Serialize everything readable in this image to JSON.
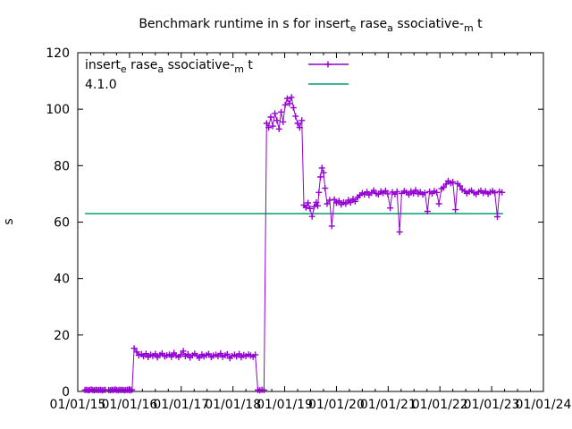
{
  "title": {
    "display": "Benchmark runtime in s for insertₑ raseₐ ssociative-ₘ t",
    "parts": [
      {
        "t": "Benchmark runtime in s for insert"
      },
      {
        "s": "e"
      },
      {
        "t": " rase"
      },
      {
        "s": "a"
      },
      {
        "t": " ssociative-"
      },
      {
        "s": "m"
      },
      {
        "t": " t"
      }
    ]
  },
  "legend": {
    "position": "top-left-inside",
    "entries": [
      {
        "display": "insertₑ raseₐ ssociative-ₘ t",
        "parts": [
          {
            "t": "insert"
          },
          {
            "s": "e"
          },
          {
            "t": " rase"
          },
          {
            "s": "a"
          },
          {
            "t": " ssociative-"
          },
          {
            "s": "m"
          },
          {
            "t": " t"
          }
        ],
        "color": "#9400D3",
        "style": "linespoints-plus"
      },
      {
        "display": "4.1.0",
        "parts": [
          {
            "t": "4.1.0"
          }
        ],
        "color": "#009E73",
        "style": "line"
      }
    ]
  },
  "colors": {
    "benchmark_series": "#9400D3",
    "reference_line": "#009E73",
    "axis": "#000000",
    "background": "#ffffff"
  },
  "chart_data": {
    "type": "scatter",
    "subtype": "linespoints-time-series",
    "title": "Benchmark runtime in s for insertₑ raseₐ ssociative-ₘ t",
    "xlabel": "",
    "ylabel": "s",
    "grid": false,
    "legend_position": "inside top-left",
    "x_axis": {
      "kind": "date",
      "tick_labels": [
        "01/01/15",
        "01/01/16",
        "01/01/17",
        "01/01/18",
        "01/01/19",
        "01/01/20",
        "01/01/21",
        "01/01/22",
        "01/01/23",
        "01/01/24"
      ],
      "range_years": [
        2015,
        2024
      ],
      "minor_ticks_per_year": 3
    },
    "y_axis": {
      "ticks": [
        0,
        20,
        40,
        60,
        80,
        100,
        120
      ],
      "range": [
        0,
        120
      ],
      "label": "s"
    },
    "series": [
      {
        "name": "insertₑ raseₐ ssociative-ₘ t",
        "color": "#9400D3",
        "marker": "plus",
        "style": "linespoints",
        "points": [
          [
            2015.14,
            0.5
          ],
          [
            2015.17,
            0.6
          ],
          [
            2015.2,
            0.4
          ],
          [
            2015.23,
            0.5
          ],
          [
            2015.26,
            0.7
          ],
          [
            2015.29,
            0.5
          ],
          [
            2015.32,
            0.4
          ],
          [
            2015.35,
            0.6
          ],
          [
            2015.38,
            0.5
          ],
          [
            2015.41,
            0.5
          ],
          [
            2015.44,
            0.6
          ],
          [
            2015.47,
            0.4
          ],
          [
            2015.5,
            0.5
          ],
          [
            2015.53,
            0.6
          ],
          [
            2015.6,
            0.5
          ],
          [
            2015.63,
            0.4
          ],
          [
            2015.66,
            0.6
          ],
          [
            2015.69,
            0.5
          ],
          [
            2015.72,
            0.7
          ],
          [
            2015.75,
            0.5
          ],
          [
            2015.78,
            0.4
          ],
          [
            2015.81,
            0.6
          ],
          [
            2015.84,
            0.5
          ],
          [
            2015.87,
            0.6
          ],
          [
            2015.9,
            0.4
          ],
          [
            2015.93,
            0.5
          ],
          [
            2015.96,
            0.6
          ],
          [
            2015.99,
            0.5
          ],
          [
            2016.02,
            0.4
          ],
          [
            2016.05,
            0.6
          ],
          [
            2016.09,
            15.3
          ],
          [
            2016.14,
            14.0
          ],
          [
            2016.18,
            12.8
          ],
          [
            2016.23,
            13.2
          ],
          [
            2016.27,
            12.5
          ],
          [
            2016.32,
            13.4
          ],
          [
            2016.36,
            12.2
          ],
          [
            2016.41,
            13.0
          ],
          [
            2016.45,
            12.6
          ],
          [
            2016.5,
            13.3
          ],
          [
            2016.54,
            12.1
          ],
          [
            2016.59,
            12.9
          ],
          [
            2016.63,
            13.5
          ],
          [
            2016.68,
            12.4
          ],
          [
            2016.72,
            12.8
          ],
          [
            2016.77,
            13.1
          ],
          [
            2016.81,
            12.3
          ],
          [
            2016.86,
            13.6
          ],
          [
            2016.9,
            12.7
          ],
          [
            2016.95,
            12.2
          ],
          [
            2016.99,
            13.0
          ],
          [
            2017.04,
            14.3
          ],
          [
            2017.08,
            12.5
          ],
          [
            2017.13,
            13.2
          ],
          [
            2017.17,
            12.0
          ],
          [
            2017.22,
            12.8
          ],
          [
            2017.26,
            13.4
          ],
          [
            2017.31,
            12.6
          ],
          [
            2017.35,
            11.9
          ],
          [
            2017.4,
            13.1
          ],
          [
            2017.44,
            12.4
          ],
          [
            2017.49,
            12.9
          ],
          [
            2017.53,
            13.3
          ],
          [
            2017.58,
            12.2
          ],
          [
            2017.62,
            12.7
          ],
          [
            2017.67,
            13.0
          ],
          [
            2017.71,
            12.5
          ],
          [
            2017.76,
            13.5
          ],
          [
            2017.8,
            12.3
          ],
          [
            2017.85,
            12.8
          ],
          [
            2017.89,
            13.2
          ],
          [
            2017.94,
            11.8
          ],
          [
            2017.98,
            12.6
          ],
          [
            2018.03,
            13.0
          ],
          [
            2018.07,
            12.4
          ],
          [
            2018.12,
            13.3
          ],
          [
            2018.16,
            12.1
          ],
          [
            2018.21,
            12.9
          ],
          [
            2018.25,
            12.5
          ],
          [
            2018.3,
            13.1
          ],
          [
            2018.34,
            12.7
          ],
          [
            2018.39,
            12.3
          ],
          [
            2018.43,
            13.0
          ],
          [
            2018.48,
            0.5
          ],
          [
            2018.52,
            0.4
          ],
          [
            2018.56,
            0.6
          ],
          [
            2018.6,
            0.5
          ],
          [
            2018.65,
            95.0
          ],
          [
            2018.69,
            93.5
          ],
          [
            2018.73,
            97.2
          ],
          [
            2018.77,
            94.0
          ],
          [
            2018.81,
            98.5
          ],
          [
            2018.85,
            96.0
          ],
          [
            2018.89,
            93.0
          ],
          [
            2018.93,
            99.0
          ],
          [
            2018.97,
            95.5
          ],
          [
            2019.01,
            101.5
          ],
          [
            2019.05,
            103.8
          ],
          [
            2019.09,
            102.0
          ],
          [
            2019.13,
            104.2
          ],
          [
            2019.17,
            100.5
          ],
          [
            2019.21,
            97.5
          ],
          [
            2019.25,
            95.0
          ],
          [
            2019.29,
            93.5
          ],
          [
            2019.33,
            96.0
          ],
          [
            2019.37,
            66.0
          ],
          [
            2019.41,
            65.2
          ],
          [
            2019.45,
            66.8
          ],
          [
            2019.49,
            64.8
          ],
          [
            2019.53,
            62.0
          ],
          [
            2019.57,
            65.5
          ],
          [
            2019.61,
            67.0
          ],
          [
            2019.64,
            65.8
          ],
          [
            2019.66,
            70.5
          ],
          [
            2019.69,
            76.0
          ],
          [
            2019.72,
            79.2
          ],
          [
            2019.75,
            77.5
          ],
          [
            2019.78,
            72.0
          ],
          [
            2019.82,
            66.5
          ],
          [
            2019.87,
            67.8
          ],
          [
            2019.91,
            58.6
          ],
          [
            2019.96,
            68.0
          ],
          [
            2020.0,
            66.8
          ],
          [
            2020.05,
            67.5
          ],
          [
            2020.09,
            66.2
          ],
          [
            2020.14,
            67.0
          ],
          [
            2020.18,
            66.5
          ],
          [
            2020.23,
            67.8
          ],
          [
            2020.27,
            66.9
          ],
          [
            2020.32,
            68.2
          ],
          [
            2020.36,
            67.3
          ],
          [
            2020.41,
            68.8
          ],
          [
            2020.45,
            69.5
          ],
          [
            2020.5,
            70.3
          ],
          [
            2020.54,
            69.8
          ],
          [
            2020.59,
            70.7
          ],
          [
            2020.63,
            69.6
          ],
          [
            2020.68,
            70.4
          ],
          [
            2020.72,
            71.2
          ],
          [
            2020.77,
            70.1
          ],
          [
            2020.81,
            69.8
          ],
          [
            2020.86,
            70.9
          ],
          [
            2020.9,
            70.3
          ],
          [
            2020.95,
            71.1
          ],
          [
            2020.99,
            70.0
          ],
          [
            2021.04,
            65.0
          ],
          [
            2021.08,
            70.6
          ],
          [
            2021.13,
            69.9
          ],
          [
            2021.17,
            70.8
          ],
          [
            2021.22,
            56.5
          ],
          [
            2021.26,
            70.2
          ],
          [
            2021.31,
            71.0
          ],
          [
            2021.35,
            70.5
          ],
          [
            2021.4,
            69.7
          ],
          [
            2021.44,
            70.9
          ],
          [
            2021.49,
            70.2
          ],
          [
            2021.53,
            71.3
          ],
          [
            2021.58,
            70.0
          ],
          [
            2021.62,
            70.6
          ],
          [
            2021.67,
            69.8
          ],
          [
            2021.71,
            70.4
          ],
          [
            2021.76,
            63.8
          ],
          [
            2021.8,
            70.8
          ],
          [
            2021.85,
            70.1
          ],
          [
            2021.89,
            71.0
          ],
          [
            2021.94,
            70.5
          ],
          [
            2021.98,
            66.5
          ],
          [
            2022.03,
            71.8
          ],
          [
            2022.07,
            72.3
          ],
          [
            2022.12,
            73.5
          ],
          [
            2022.16,
            74.6
          ],
          [
            2022.21,
            73.8
          ],
          [
            2022.25,
            74.2
          ],
          [
            2022.3,
            64.4
          ],
          [
            2022.34,
            73.6
          ],
          [
            2022.39,
            72.8
          ],
          [
            2022.43,
            71.5
          ],
          [
            2022.48,
            71.0
          ],
          [
            2022.52,
            70.2
          ],
          [
            2022.57,
            70.8
          ],
          [
            2022.61,
            71.2
          ],
          [
            2022.66,
            70.4
          ],
          [
            2022.7,
            69.9
          ],
          [
            2022.75,
            70.7
          ],
          [
            2022.79,
            71.1
          ],
          [
            2022.84,
            70.3
          ],
          [
            2022.88,
            70.9
          ],
          [
            2022.93,
            70.0
          ],
          [
            2022.97,
            70.6
          ],
          [
            2023.02,
            71.0
          ],
          [
            2023.06,
            70.4
          ],
          [
            2023.11,
            61.9
          ],
          [
            2023.15,
            70.8
          ],
          [
            2023.2,
            70.5
          ]
        ]
      },
      {
        "name": "4.1.0",
        "color": "#009E73",
        "style": "hline",
        "y": 63.0,
        "x_start": 2015.14,
        "x_end": 2023.22
      }
    ]
  }
}
